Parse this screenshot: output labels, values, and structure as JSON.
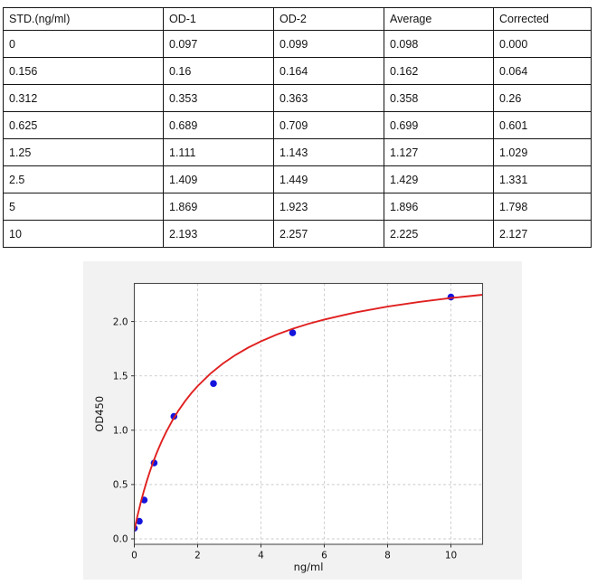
{
  "table": {
    "headers": [
      "STD.(ng/ml)",
      "OD-1",
      "OD-2",
      "Average",
      "Corrected"
    ],
    "rows": [
      [
        "0",
        "0.097",
        "0.099",
        "0.098",
        "0.000"
      ],
      [
        "0.156",
        "0.16",
        "0.164",
        "0.162",
        "0.064"
      ],
      [
        "0.312",
        "0.353",
        "0.363",
        "0.358",
        "0.26"
      ],
      [
        "0.625",
        "0.689",
        "0.709",
        "0.699",
        "0.601"
      ],
      [
        "1.25",
        "1.111",
        "1.143",
        "1.127",
        "1.029"
      ],
      [
        "2.5",
        "1.409",
        "1.449",
        "1.429",
        "1.331"
      ],
      [
        "5",
        "1.869",
        "1.923",
        "1.896",
        "1.798"
      ],
      [
        "10",
        "2.193",
        "2.257",
        "2.225",
        "2.127"
      ]
    ]
  },
  "chart_data": {
    "type": "scatter",
    "title": "",
    "xlabel": "ng/ml",
    "ylabel": "OD450",
    "xlim": [
      0,
      11
    ],
    "ylim": [
      -0.05,
      2.35
    ],
    "x_ticks": [
      0,
      2,
      4,
      6,
      8,
      10
    ],
    "x_tick_labels": [
      "0",
      "2",
      "4",
      "6",
      "8",
      "10"
    ],
    "y_ticks": [
      0.0,
      0.5,
      1.0,
      1.5,
      2.0
    ],
    "y_tick_labels": [
      "0.0",
      "0.5",
      "1.0",
      "1.5",
      "2.0"
    ],
    "grid": {
      "visible": true,
      "style": "dashed"
    },
    "legend": {
      "visible": false
    },
    "series": [
      {
        "name": "standard-points",
        "type": "scatter",
        "color": "#1414dd",
        "points": [
          [
            0,
            0.098
          ],
          [
            0.156,
            0.162
          ],
          [
            0.312,
            0.358
          ],
          [
            0.625,
            0.699
          ],
          [
            1.25,
            1.127
          ],
          [
            2.5,
            1.429
          ],
          [
            5,
            1.896
          ],
          [
            10,
            2.225
          ]
        ]
      },
      {
        "name": "fit-curve",
        "type": "line",
        "color": "#e02020",
        "points": [
          [
            0,
            0.08
          ],
          [
            0.05,
            0.148
          ],
          [
            0.1,
            0.213
          ],
          [
            0.15,
            0.274
          ],
          [
            0.2,
            0.332
          ],
          [
            0.3,
            0.44
          ],
          [
            0.4,
            0.538
          ],
          [
            0.5,
            0.628
          ],
          [
            0.6,
            0.71
          ],
          [
            0.7,
            0.786
          ],
          [
            0.8,
            0.855
          ],
          [
            0.9,
            0.92
          ],
          [
            1.0,
            0.98
          ],
          [
            1.2,
            1.088
          ],
          [
            1.4,
            1.183
          ],
          [
            1.6,
            1.266
          ],
          [
            1.8,
            1.34
          ],
          [
            2.0,
            1.406
          ],
          [
            2.4,
            1.52
          ],
          [
            2.8,
            1.614
          ],
          [
            3.2,
            1.693
          ],
          [
            3.6,
            1.76
          ],
          [
            4.0,
            1.818
          ],
          [
            4.5,
            1.88
          ],
          [
            5.0,
            1.933
          ],
          [
            5.5,
            1.979
          ],
          [
            6.0,
            2.018
          ],
          [
            7.0,
            2.085
          ],
          [
            8.0,
            2.137
          ],
          [
            9.0,
            2.18
          ],
          [
            10.0,
            2.216
          ],
          [
            11.0,
            2.246
          ]
        ]
      }
    ],
    "style": {
      "figure_bg": "#f2f2f2",
      "plot_bg": "#ffffff",
      "grid_color": "#c9c9c9",
      "spine_color": "#4d4d4d",
      "tick_color": "#333333",
      "text_color": "#111111"
    }
  }
}
